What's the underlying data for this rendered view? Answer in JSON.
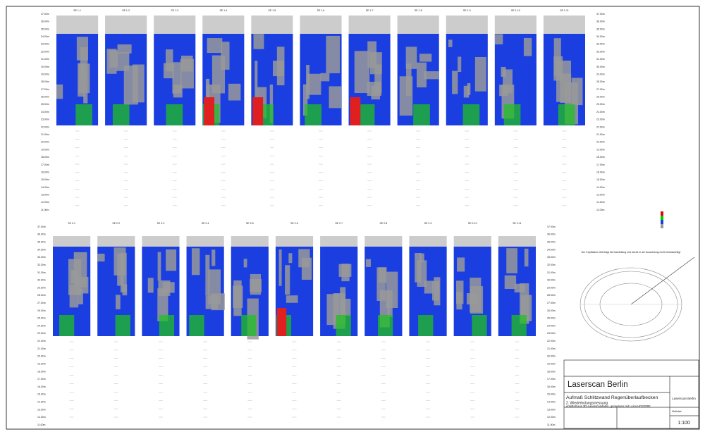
{
  "depth_labels": [
    "37.00m",
    "36.00m",
    "35.00m",
    "34.00m",
    "33.00m",
    "32.00m",
    "31.00m",
    "30.00m",
    "29.00m",
    "28.00m",
    "27.00m",
    "26.00m",
    "25.00m",
    "24.00m",
    "23.00m",
    "22.00m",
    "21.00m",
    "20.00m",
    "19.00m",
    "18.00m",
    "17.00m",
    "16.00m",
    "15.00m",
    "14.00m",
    "13.00m",
    "12.00m",
    "11.00m"
  ],
  "panels": {
    "top": [
      "SE 1-1",
      "SE 1-2",
      "SE 1-3",
      "SE 1-4",
      "SE 1-5",
      "SE 1-6",
      "SE 1-7",
      "SE 1-8",
      "SE 1-9",
      "SE 1-10",
      "SE 1-11"
    ],
    "bottom": [
      "SE 2-1",
      "SE 2-2",
      "SE 2-3",
      "SE 2-4",
      "SE 2-5",
      "SE 2-6",
      "SE 2-7",
      "SE 2-8",
      "SE 2-9",
      "SE 2-10",
      "SE 2-11"
    ]
  },
  "note": "Der Kopfbalken überträgt die Darstellung und wurde in der Auswertung nicht berücksichtigt",
  "title_block": {
    "company": "Laserscan Berlin",
    "title": "Aufmaß Schlitzwand Regenüberlaufbecken",
    "subtitle": "2. Wiederholungsmessung",
    "description": "ermittelt aus 3D-Laserscandaten, gemessen mit Leica HDS7000",
    "logo": "Laserscan Berlin",
    "scale_label": "Maßstab",
    "scale": "1:100"
  }
}
